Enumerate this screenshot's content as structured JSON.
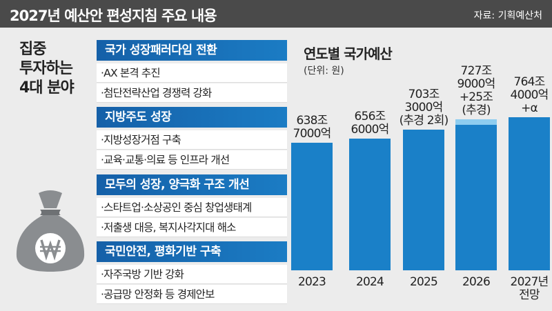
{
  "header": {
    "title": "2027년 예산안 편성지침 주요 내용",
    "source": "자료: 기획예산처"
  },
  "side_label": "집중\n투자하는\n4대 분야",
  "sections": [
    {
      "title": "국가 성장패러다임 전환",
      "items": [
        "AX 본격 추진",
        "첨단전략산업 경쟁력 강화"
      ]
    },
    {
      "title": "지방주도 성장",
      "items": [
        "지방성장거점 구축",
        "교육·교통·의료 등 인프라 개선"
      ]
    },
    {
      "title": "모두의 성장, 양극화 구조 개선",
      "items": [
        "스타트업·소상공인 중심 창업생태계",
        "저출생 대응, 복지사각지대 해소"
      ]
    },
    {
      "title": "국민안전, 평화기반 구축",
      "items": [
        "자주국방 기반 강화",
        "공급망 안정화 등 경제안보"
      ]
    }
  ],
  "chart_data": {
    "type": "bar",
    "stacked": true,
    "title": "연도별 국가예산",
    "subtitle": "(단위: 원)",
    "categories": [
      "2023",
      "2024",
      "2025",
      "2026",
      "2027년\n전망"
    ],
    "series": [
      {
        "color": "#1a80c8",
        "values": [
          638.7,
          656.6,
          703.3,
          727.9,
          764.4
        ],
        "value_labels": [
          "638조\n7000억",
          "656조\n6000억",
          "703조\n3000억\n(추경 2회)",
          "727조\n9000억",
          "764조\n4000억\n+α"
        ]
      },
      {
        "color": "#8ecdf0",
        "values": [
          null,
          null,
          null,
          25,
          null
        ],
        "value_labels": [
          null,
          null,
          null,
          "+25조\n(추경)",
          null
        ]
      }
    ]
  }
}
